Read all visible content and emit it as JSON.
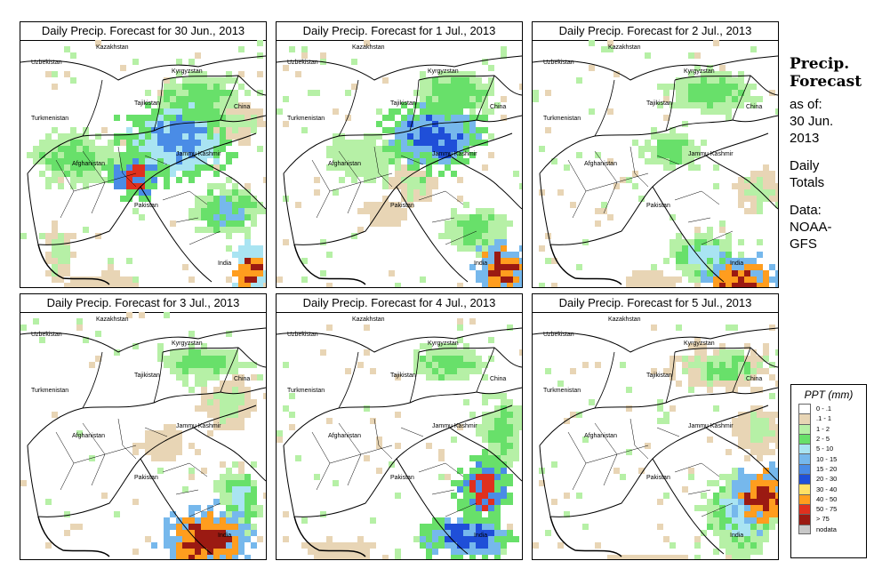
{
  "panels": [
    {
      "title": "Daily Precip. Forecast for  30 Jun., 2013",
      "id": "p0"
    },
    {
      "title": "Daily Precip. Forecast for  1 Jul., 2013",
      "id": "p1"
    },
    {
      "title": "Daily Precip. Forecast for  2 Jul., 2013",
      "id": "p2"
    },
    {
      "title": "Daily Precip. Forecast for  3 Jul., 2013",
      "id": "p3"
    },
    {
      "title": "Daily Precip. Forecast for  4 Jul., 2013",
      "id": "p4"
    },
    {
      "title": "Daily Precip. Forecast for  5 Jul., 2013",
      "id": "p5"
    }
  ],
  "map_labels": {
    "kazakhstan": "Kazakhstan",
    "uzbekistan": "Uzbekistan",
    "kyrgyzstan": "Kyrgyzstan",
    "tajikistan": "Tajikistan",
    "china": "China",
    "turkmenistan": "Turkmenistan",
    "afghanistan": "Afghanistan",
    "jammu_kashmir": "Jammu Kashmir",
    "pakistan": "Pakistan",
    "india": "India"
  },
  "sidebar": {
    "heading1": "Precip.",
    "heading2": "Forecast",
    "asof_label": "as of:",
    "date1": "30 Jun.",
    "date2": "2013",
    "daily1": "Daily",
    "daily2": "Totals",
    "data1": "Data:",
    "data2": "NOAA-",
    "data3": "GFS"
  },
  "legend": {
    "title": "PPT (mm)",
    "items": [
      {
        "label": "0 - .1",
        "color": "#ffffff"
      },
      {
        "label": ".1 - 1",
        "color": "#e8d5b5"
      },
      {
        "label": "1 - 2",
        "color": "#b6f0a6"
      },
      {
        "label": "2 - 5",
        "color": "#68e06a"
      },
      {
        "label": "5 - 10",
        "color": "#a9e4f2"
      },
      {
        "label": "10 - 15",
        "color": "#76b8ec"
      },
      {
        "label": "15 - 20",
        "color": "#4a8ce6"
      },
      {
        "label": "20 - 30",
        "color": "#1f4fd8"
      },
      {
        "label": "30 - 40",
        "color": "#ffe066"
      },
      {
        "label": "40 - 50",
        "color": "#ff9d1e"
      },
      {
        "label": "50 - 75",
        "color": "#e0301e"
      },
      {
        "label": "> 75",
        "color": "#9b1a12"
      },
      {
        "label": "nodata",
        "color": "#c8c8c8"
      }
    ]
  }
}
